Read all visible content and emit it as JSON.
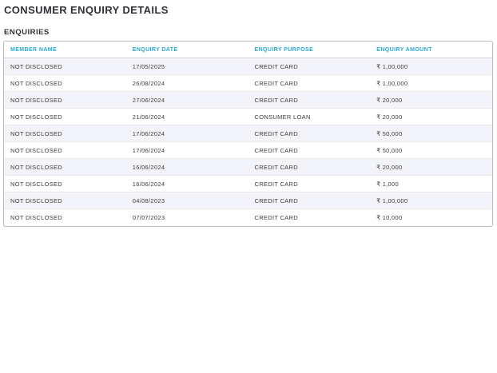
{
  "page": {
    "title": "CONSUMER ENQUIRY DETAILS",
    "section_title": "ENQUIRIES"
  },
  "colors": {
    "accent": "#29aad6",
    "title_text": "#30303a",
    "body_text": "#3b3b40",
    "stripe_bg": "#f3f4f9",
    "table_border": "#b9b9c0"
  },
  "table": {
    "columns": [
      "MEMBER NAME",
      "ENQUIRY DATE",
      "ENQUIRY PURPOSE",
      "ENQUIRY AMOUNT"
    ],
    "rows": [
      {
        "member_name": "NOT DISCLOSED",
        "enquiry_date": "17/05/2025",
        "enquiry_purpose": "CREDIT CARD",
        "enquiry_amount": "₹ 1,00,000"
      },
      {
        "member_name": "NOT DISCLOSED",
        "enquiry_date": "26/08/2024",
        "enquiry_purpose": "CREDIT CARD",
        "enquiry_amount": "₹ 1,00,000"
      },
      {
        "member_name": "NOT DISCLOSED",
        "enquiry_date": "27/06/2024",
        "enquiry_purpose": "CREDIT CARD",
        "enquiry_amount": "₹ 20,000"
      },
      {
        "member_name": "NOT DISCLOSED",
        "enquiry_date": "21/06/2024",
        "enquiry_purpose": "CONSUMER LOAN",
        "enquiry_amount": "₹ 20,000"
      },
      {
        "member_name": "NOT DISCLOSED",
        "enquiry_date": "17/06/2024",
        "enquiry_purpose": "CREDIT CARD",
        "enquiry_amount": "₹ 50,000"
      },
      {
        "member_name": "NOT DISCLOSED",
        "enquiry_date": "17/06/2024",
        "enquiry_purpose": "CREDIT CARD",
        "enquiry_amount": "₹ 50,000"
      },
      {
        "member_name": "NOT DISCLOSED",
        "enquiry_date": "16/06/2024",
        "enquiry_purpose": "CREDIT CARD",
        "enquiry_amount": "₹ 20,000"
      },
      {
        "member_name": "NOT DISCLOSED",
        "enquiry_date": "16/06/2024",
        "enquiry_purpose": "CREDIT CARD",
        "enquiry_amount": "₹ 1,000"
      },
      {
        "member_name": "NOT DISCLOSED",
        "enquiry_date": "04/08/2023",
        "enquiry_purpose": "CREDIT CARD",
        "enquiry_amount": "₹ 1,00,000"
      },
      {
        "member_name": "NOT DISCLOSED",
        "enquiry_date": "07/07/2023",
        "enquiry_purpose": "CREDIT CARD",
        "enquiry_amount": "₹ 10,000"
      }
    ]
  }
}
